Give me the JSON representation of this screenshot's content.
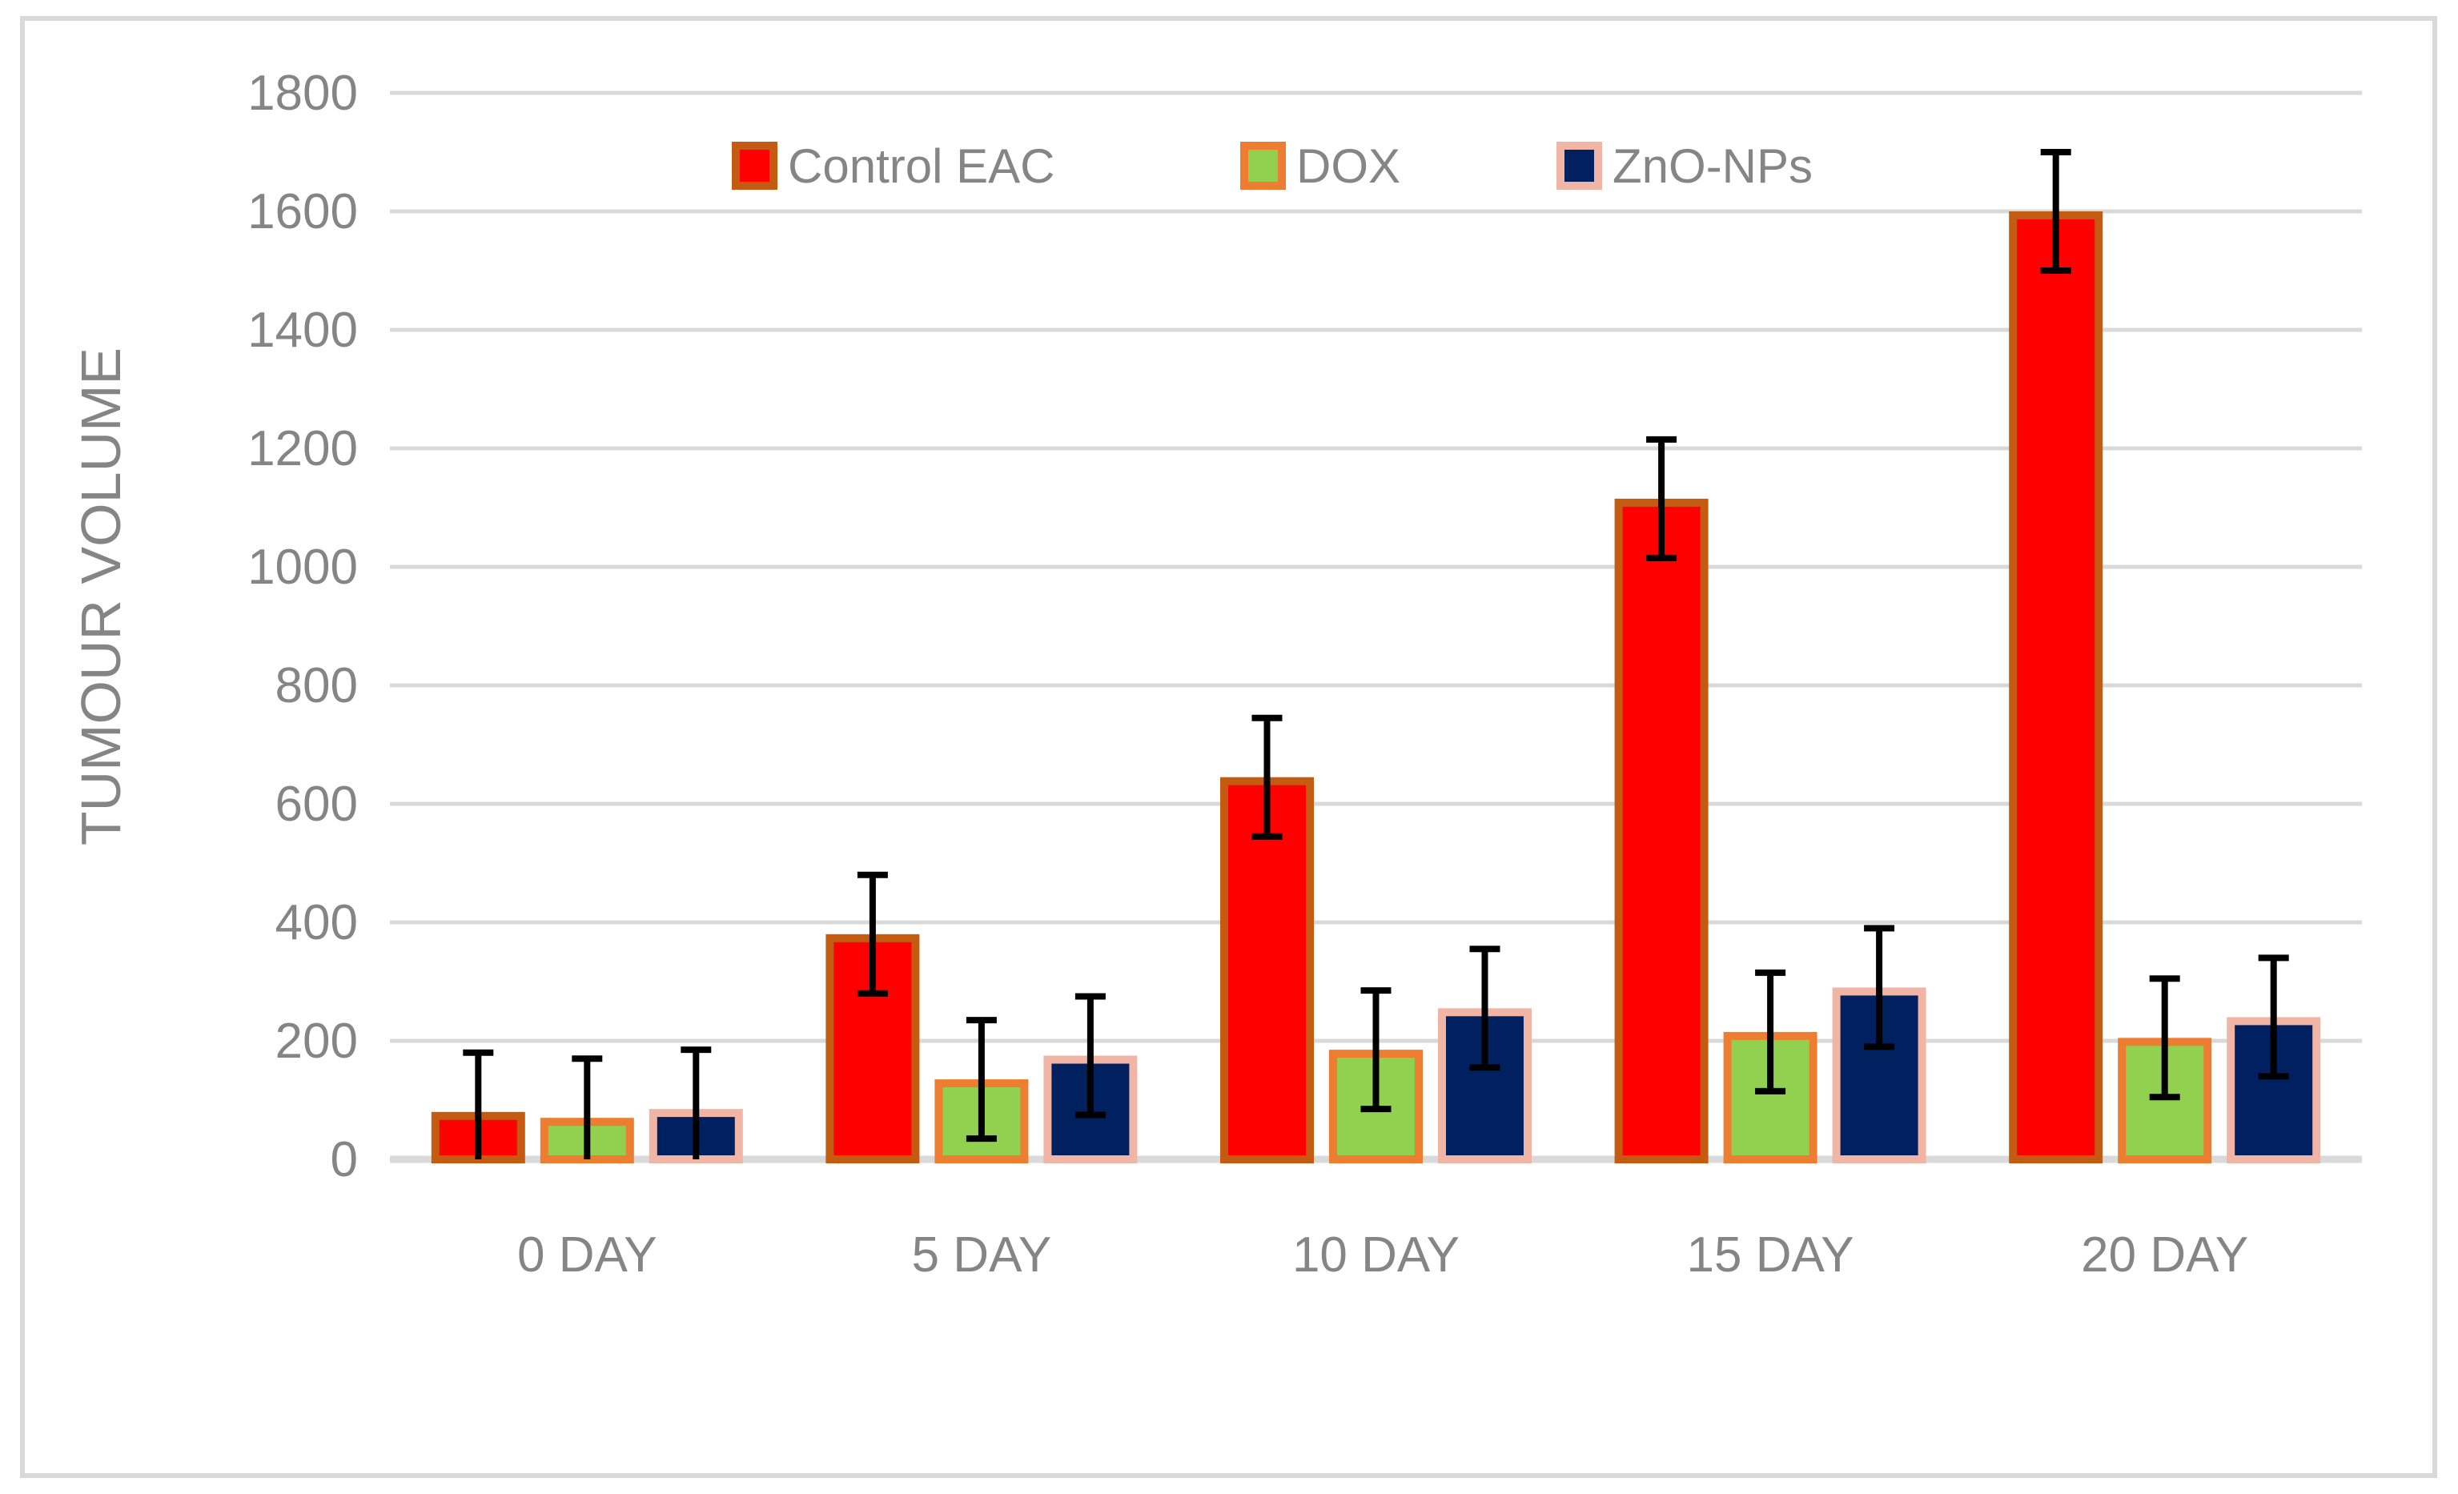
{
  "chart_data": {
    "type": "bar",
    "title": "",
    "xlabel": "",
    "ylabel": "TUMOUR VOLUME",
    "categories": [
      "0 DAY",
      "5 DAY",
      "10 DAY",
      "15 DAY",
      "20 DAY"
    ],
    "series": [
      {
        "name": "Control EAC",
        "fill": "#FF0000",
        "border": "#C55A11",
        "values": [
          80,
          380,
          645,
          1115,
          1600
        ],
        "error": 100
      },
      {
        "name": "DOX",
        "fill": "#92D050",
        "border": "#ED7D31",
        "values": [
          70,
          135,
          185,
          215,
          205
        ],
        "error": 100
      },
      {
        "name": "ZnO-NPs",
        "fill": "#002060",
        "border": "#F0B5A4",
        "values": [
          85,
          175,
          255,
          290,
          240
        ],
        "error": 100
      }
    ],
    "ylim": [
      0,
      1800
    ],
    "ytick_step": 200,
    "yticks": [
      "0",
      "200",
      "400",
      "600",
      "800",
      "1000",
      "1200",
      "1400",
      "1600",
      "1800"
    ],
    "grid": true,
    "legend_position": "top-center",
    "colors": {
      "grid": "#D9D9D9",
      "frame": "#D9D9D9",
      "text": "#858585",
      "error_bar": "#000000",
      "background": "#FFFFFF"
    }
  }
}
